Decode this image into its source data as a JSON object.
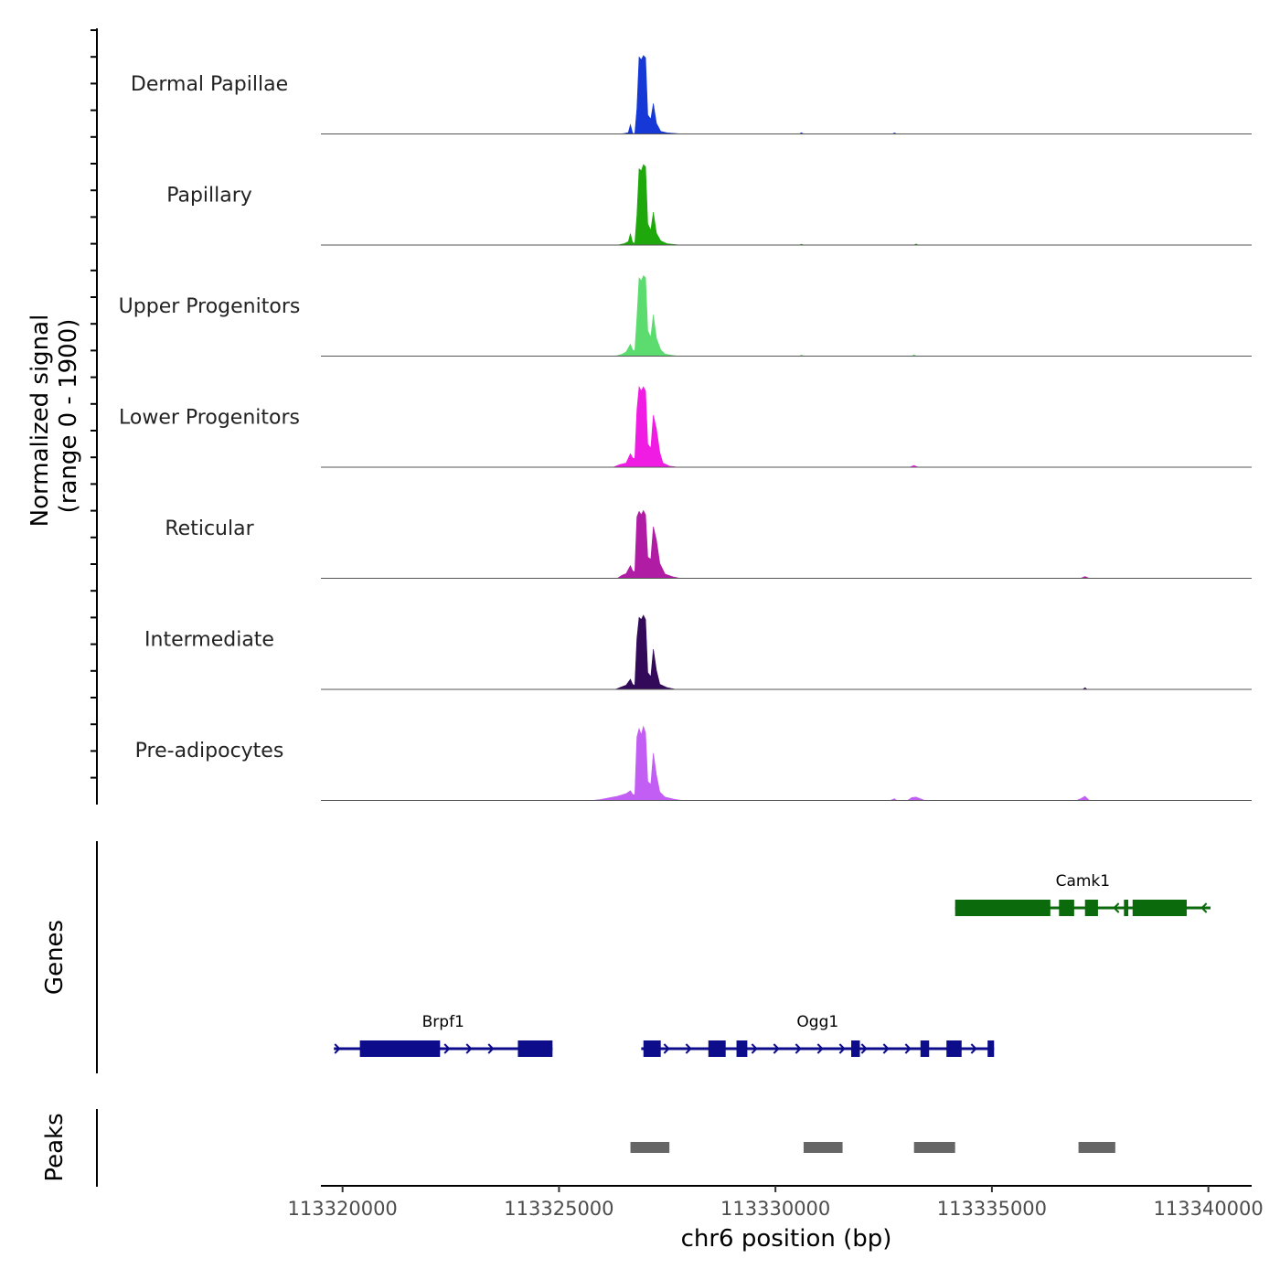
{
  "chart_data": {
    "type": "area",
    "title": "",
    "chromosome": "chr6",
    "xlabel": "chr6 position (bp)",
    "xlim": [
      113319500,
      113341000
    ],
    "xticks": [
      113320000,
      113325000,
      113330000,
      113335000,
      113340000
    ],
    "xtick_labels": [
      "113320000",
      "113325000",
      "113330000",
      "113335000",
      "113340000"
    ],
    "signal_panel": {
      "ylabel_line1": "Normalized signal",
      "ylabel_line2": "(range 0 - 1900)",
      "ylim": [
        0,
        1900
      ],
      "series": [
        {
          "name": "Dermal Papillae",
          "color": "#1538D6",
          "points": [
            [
              113326400,
              0
            ],
            [
              113326500,
              8
            ],
            [
              113326600,
              30
            ],
            [
              113326650,
              220
            ],
            [
              113326700,
              20
            ],
            [
              113326750,
              5
            ],
            [
              113326800,
              600
            ],
            [
              113326850,
              1820
            ],
            [
              113326900,
              1750
            ],
            [
              113326950,
              1850
            ],
            [
              113327000,
              1800
            ],
            [
              113327050,
              450
            ],
            [
              113327120,
              350
            ],
            [
              113327180,
              720
            ],
            [
              113327250,
              250
            ],
            [
              113327350,
              60
            ],
            [
              113327500,
              25
            ],
            [
              113327700,
              10
            ],
            [
              113327850,
              0
            ],
            [
              113330550,
              0
            ],
            [
              113330600,
              30
            ],
            [
              113330650,
              0
            ],
            [
              113332700,
              0
            ],
            [
              113332750,
              25
            ],
            [
              113332800,
              0
            ]
          ]
        },
        {
          "name": "Papillary",
          "color": "#1FA80C",
          "points": [
            [
              113326350,
              0
            ],
            [
              113326500,
              30
            ],
            [
              113326600,
              80
            ],
            [
              113326650,
              270
            ],
            [
              113326700,
              60
            ],
            [
              113326750,
              40
            ],
            [
              113326800,
              700
            ],
            [
              113326850,
              1800
            ],
            [
              113326900,
              1750
            ],
            [
              113326950,
              1900
            ],
            [
              113327000,
              1850
            ],
            [
              113327050,
              500
            ],
            [
              113327120,
              350
            ],
            [
              113327180,
              780
            ],
            [
              113327250,
              280
            ],
            [
              113327350,
              100
            ],
            [
              113327500,
              30
            ],
            [
              113327700,
              10
            ],
            [
              113327800,
              0
            ],
            [
              113330550,
              0
            ],
            [
              113330600,
              20
            ],
            [
              113330650,
              0
            ],
            [
              113333200,
              0
            ],
            [
              113333250,
              25
            ],
            [
              113333300,
              0
            ]
          ]
        },
        {
          "name": "Upper Progenitors",
          "color": "#5CDB6E",
          "points": [
            [
              113326300,
              0
            ],
            [
              113326450,
              40
            ],
            [
              113326550,
              100
            ],
            [
              113326650,
              280
            ],
            [
              113326700,
              150
            ],
            [
              113326750,
              120
            ],
            [
              113326800,
              900
            ],
            [
              113326850,
              1850
            ],
            [
              113326900,
              1780
            ],
            [
              113326950,
              1900
            ],
            [
              113327000,
              1850
            ],
            [
              113327050,
              600
            ],
            [
              113327120,
              450
            ],
            [
              113327180,
              980
            ],
            [
              113327250,
              420
            ],
            [
              113327350,
              150
            ],
            [
              113327450,
              50
            ],
            [
              113327600,
              20
            ],
            [
              113327750,
              0
            ],
            [
              113330550,
              0
            ],
            [
              113330600,
              25
            ],
            [
              113330650,
              0
            ],
            [
              113333150,
              0
            ],
            [
              113333200,
              30
            ],
            [
              113333250,
              0
            ]
          ]
        },
        {
          "name": "Lower Progenitors",
          "color": "#F11CE4",
          "points": [
            [
              113326250,
              0
            ],
            [
              113326400,
              60
            ],
            [
              113326550,
              100
            ],
            [
              113326650,
              320
            ],
            [
              113326700,
              220
            ],
            [
              113326750,
              200
            ],
            [
              113326800,
              1350
            ],
            [
              113326850,
              1900
            ],
            [
              113326900,
              1800
            ],
            [
              113326950,
              1900
            ],
            [
              113327000,
              1800
            ],
            [
              113327050,
              550
            ],
            [
              113327120,
              450
            ],
            [
              113327180,
              1230
            ],
            [
              113327250,
              900
            ],
            [
              113327330,
              350
            ],
            [
              113327400,
              100
            ],
            [
              113327550,
              25
            ],
            [
              113327750,
              0
            ],
            [
              113333100,
              0
            ],
            [
              113333200,
              40
            ],
            [
              113333300,
              0
            ]
          ]
        },
        {
          "name": "Reticular",
          "color": "#B01CA4",
          "points": [
            [
              113326350,
              0
            ],
            [
              113326450,
              70
            ],
            [
              113326550,
              110
            ],
            [
              113326650,
              300
            ],
            [
              113326700,
              180
            ],
            [
              113326750,
              150
            ],
            [
              113326800,
              1450
            ],
            [
              113326850,
              1580
            ],
            [
              113326900,
              1500
            ],
            [
              113326950,
              1600
            ],
            [
              113327000,
              1500
            ],
            [
              113327050,
              500
            ],
            [
              113327120,
              450
            ],
            [
              113327180,
              1220
            ],
            [
              113327250,
              900
            ],
            [
              113327330,
              350
            ],
            [
              113327450,
              100
            ],
            [
              113327650,
              30
            ],
            [
              113327800,
              0
            ],
            [
              113337050,
              0
            ],
            [
              113337150,
              40
            ],
            [
              113337250,
              0
            ]
          ]
        },
        {
          "name": "Intermediate",
          "color": "#330A5A",
          "points": [
            [
              113326300,
              0
            ],
            [
              113326450,
              60
            ],
            [
              113326550,
              100
            ],
            [
              113326650,
              240
            ],
            [
              113326700,
              120
            ],
            [
              113326750,
              90
            ],
            [
              113326800,
              1200
            ],
            [
              113326850,
              1700
            ],
            [
              113326900,
              1650
            ],
            [
              113326950,
              1750
            ],
            [
              113327000,
              1650
            ],
            [
              113327050,
              400
            ],
            [
              113327120,
              300
            ],
            [
              113327180,
              950
            ],
            [
              113327250,
              450
            ],
            [
              113327330,
              120
            ],
            [
              113327500,
              40
            ],
            [
              113327700,
              0
            ],
            [
              113337100,
              0
            ],
            [
              113337150,
              40
            ],
            [
              113337200,
              0
            ]
          ]
        },
        {
          "name": "Pre-adipocytes",
          "color": "#C25EF3",
          "points": [
            [
              113325750,
              0
            ],
            [
              113325950,
              20
            ],
            [
              113326150,
              60
            ],
            [
              113326350,
              100
            ],
            [
              113326550,
              160
            ],
            [
              113326650,
              230
            ],
            [
              113326700,
              150
            ],
            [
              113326750,
              130
            ],
            [
              113326800,
              1500
            ],
            [
              113326850,
              1700
            ],
            [
              113326900,
              1550
            ],
            [
              113326950,
              1750
            ],
            [
              113327000,
              1600
            ],
            [
              113327050,
              450
            ],
            [
              113327120,
              380
            ],
            [
              113327180,
              1120
            ],
            [
              113327250,
              600
            ],
            [
              113327330,
              200
            ],
            [
              113327450,
              80
            ],
            [
              113327650,
              30
            ],
            [
              113327850,
              0
            ],
            [
              113332650,
              0
            ],
            [
              113332750,
              40
            ],
            [
              113332800,
              0
            ],
            [
              113333050,
              0
            ],
            [
              113333150,
              70
            ],
            [
              113333250,
              80
            ],
            [
              113333350,
              40
            ],
            [
              113333450,
              0
            ],
            [
              113336950,
              0
            ],
            [
              113337050,
              40
            ],
            [
              113337150,
              100
            ],
            [
              113337250,
              0
            ]
          ]
        }
      ]
    },
    "genes_panel": {
      "ylabel": "Genes",
      "genes": [
        {
          "name": "Brpf1",
          "strand": "+",
          "color": "#0D0D8C",
          "row": 2,
          "start": 113319800,
          "end": 113324850,
          "exons": [
            [
              113320400,
              113322200
            ],
            [
              113321800,
              113322250
            ],
            [
              113324050,
              113324850
            ]
          ],
          "small_exons": [
            [
              113322150,
              113322250
            ]
          ]
        },
        {
          "name": "Ogg1",
          "strand": "+",
          "color": "#0D0D8C",
          "row": 2,
          "start": 113326900,
          "end": 113335050,
          "exons": [
            [
              113326950,
              113327350
            ],
            [
              113328450,
              113328850
            ],
            [
              113329100,
              113329350
            ],
            [
              113331750,
              113331950
            ],
            [
              113333350,
              113333550
            ],
            [
              113333950,
              113334300
            ],
            [
              113334900,
              113335050
            ]
          ],
          "small_exons": []
        },
        {
          "name": "Camk1",
          "strand": "-",
          "color": "#0B6A0B",
          "row": 1,
          "start": 113334150,
          "end": 113340050,
          "exons": [
            [
              113334150,
              113336350
            ],
            [
              113336550,
              113336900
            ],
            [
              113337150,
              113337450
            ],
            [
              113338250,
              113339500
            ]
          ],
          "small_exons": [
            [
              113338050,
              113338150
            ]
          ]
        }
      ]
    },
    "peaks_panel": {
      "ylabel": "Peaks",
      "color": "#666666",
      "peaks": [
        [
          113326650,
          113327550
        ],
        [
          113330650,
          113331550
        ],
        [
          113333200,
          113334150
        ],
        [
          113337000,
          113337850
        ]
      ]
    }
  }
}
